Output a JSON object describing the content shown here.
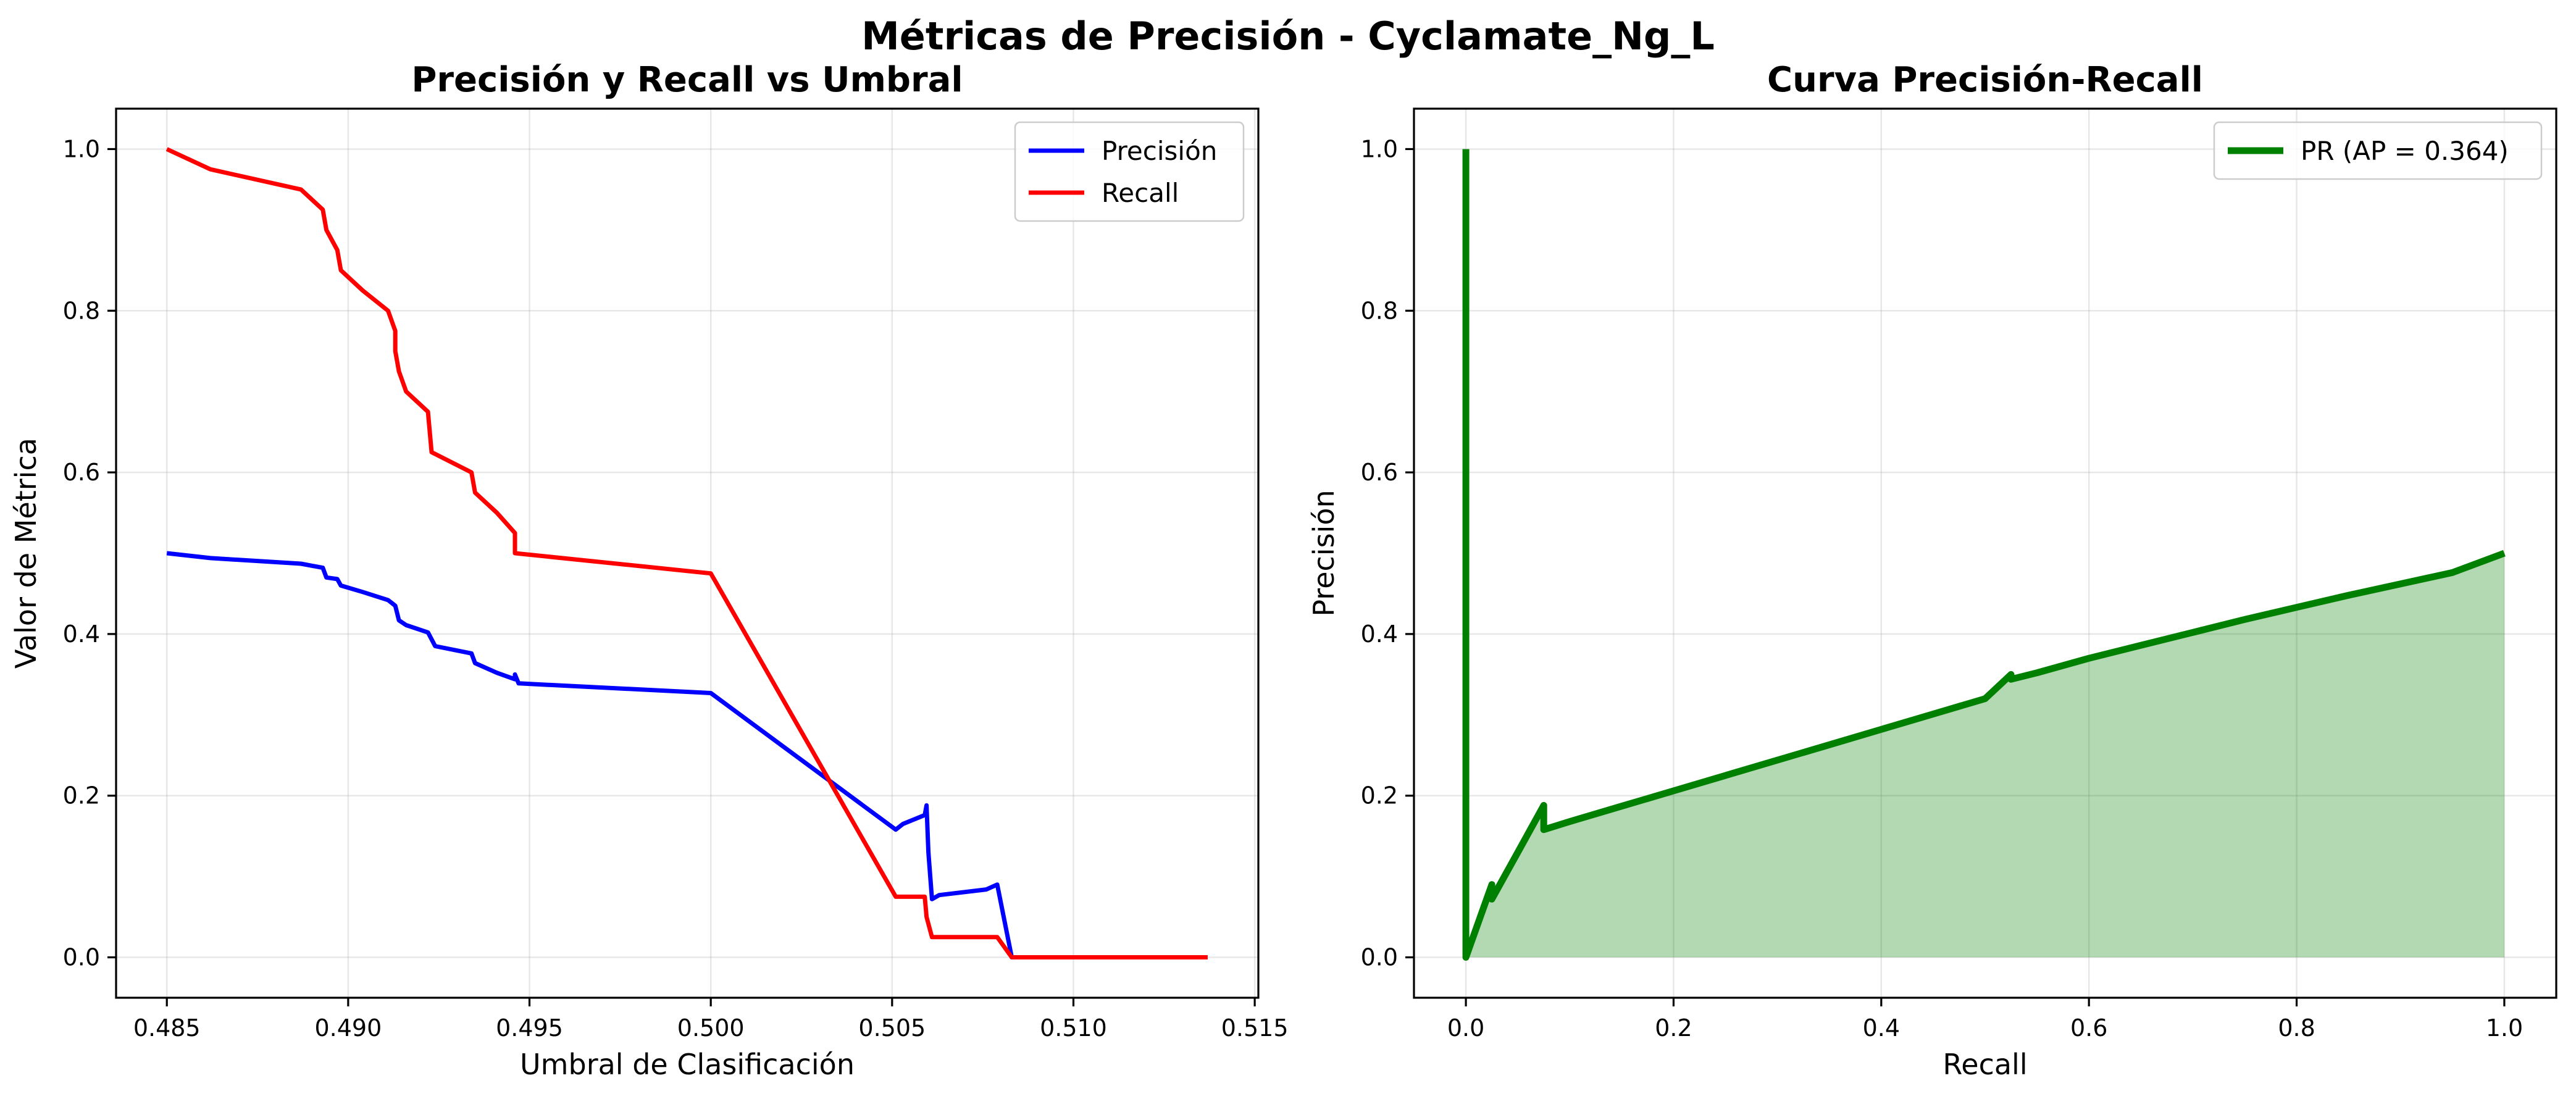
{
  "suptitle": "Métricas de Precisión - Cyclamate_Ng_L",
  "chart_data": [
    {
      "type": "line",
      "title": "Precisión y Recall vs Umbral",
      "xlabel": "Umbral de Clasificación",
      "ylabel": "Valor de Métrica",
      "xlim": [
        0.4836,
        0.5151
      ],
      "ylim": [
        -0.05,
        1.05
      ],
      "xticks": [
        "0.485",
        "0.490",
        "0.495",
        "0.500",
        "0.505",
        "0.510",
        "0.515"
      ],
      "yticks": [
        "0.0",
        "0.2",
        "0.4",
        "0.6",
        "0.8",
        "1.0"
      ],
      "grid": true,
      "legend": "top-right",
      "series": [
        {
          "name": "Precisión",
          "color": "#0000ff",
          "x": [
            0.485,
            0.4862,
            0.4887,
            0.4893,
            0.4894,
            0.4897,
            0.4898,
            0.4904,
            0.4911,
            0.4913,
            0.4914,
            0.4916,
            0.4922,
            0.4924,
            0.4934,
            0.4935,
            0.4941,
            0.4946,
            0.4946,
            0.4947,
            0.5,
            0.5051,
            0.5053,
            0.5059,
            0.50595,
            0.506,
            0.5061,
            0.5063,
            0.5076,
            0.5079,
            0.5083,
            0.5137
          ],
          "y": [
            0.5,
            0.494,
            0.487,
            0.482,
            0.47,
            0.468,
            0.46,
            0.452,
            0.442,
            0.435,
            0.417,
            0.411,
            0.402,
            0.385,
            0.376,
            0.364,
            0.352,
            0.344,
            0.35,
            0.339,
            0.327,
            0.158,
            0.165,
            0.176,
            0.188,
            0.13,
            0.072,
            0.077,
            0.084,
            0.09,
            0.0,
            0.0
          ]
        },
        {
          "name": "Recall",
          "color": "#ff0000",
          "x": [
            0.485,
            0.4862,
            0.4887,
            0.4893,
            0.4894,
            0.4897,
            0.4898,
            0.4904,
            0.4911,
            0.4913,
            0.4913,
            0.4914,
            0.4916,
            0.4922,
            0.4923,
            0.4934,
            0.4935,
            0.4941,
            0.4946,
            0.4946,
            0.5,
            0.5051,
            0.5059,
            0.50595,
            0.5061,
            0.5079,
            0.5083,
            0.5137
          ],
          "y": [
            1.0,
            0.975,
            0.95,
            0.925,
            0.9,
            0.875,
            0.85,
            0.825,
            0.8,
            0.775,
            0.75,
            0.725,
            0.7,
            0.675,
            0.625,
            0.6,
            0.575,
            0.55,
            0.525,
            0.5,
            0.475,
            0.075,
            0.075,
            0.05,
            0.025,
            0.025,
            0.0,
            0.0
          ]
        }
      ]
    },
    {
      "type": "area",
      "title": "Curva Precisión-Recall",
      "xlabel": "Recall",
      "ylabel": "Precisión",
      "xlim": [
        -0.05,
        1.05
      ],
      "ylim": [
        -0.05,
        1.05
      ],
      "xticks": [
        "0.0",
        "0.2",
        "0.4",
        "0.6",
        "0.8",
        "1.0"
      ],
      "yticks": [
        "0.0",
        "0.2",
        "0.4",
        "0.6",
        "0.8",
        "1.0"
      ],
      "grid": true,
      "legend": "top-right",
      "fill_color": "#008000",
      "series": [
        {
          "name": "PR (AP = 0.364)",
          "color": "#008000",
          "x": [
            0.0,
            0.0,
            0.025,
            0.025,
            0.05,
            0.075,
            0.075,
            0.1,
            0.15,
            0.2,
            0.25,
            0.3,
            0.35,
            0.4,
            0.45,
            0.5,
            0.525,
            0.525,
            0.55,
            0.6,
            0.65,
            0.7,
            0.75,
            0.8,
            0.85,
            0.9,
            0.95,
            1.0
          ],
          "y": [
            1.0,
            0.0,
            0.09,
            0.072,
            0.13,
            0.188,
            0.158,
            0.168,
            0.187,
            0.206,
            0.225,
            0.244,
            0.263,
            0.282,
            0.301,
            0.32,
            0.35,
            0.344,
            0.352,
            0.37,
            0.386,
            0.402,
            0.418,
            0.433,
            0.448,
            0.462,
            0.476,
            0.5
          ]
        }
      ]
    }
  ]
}
